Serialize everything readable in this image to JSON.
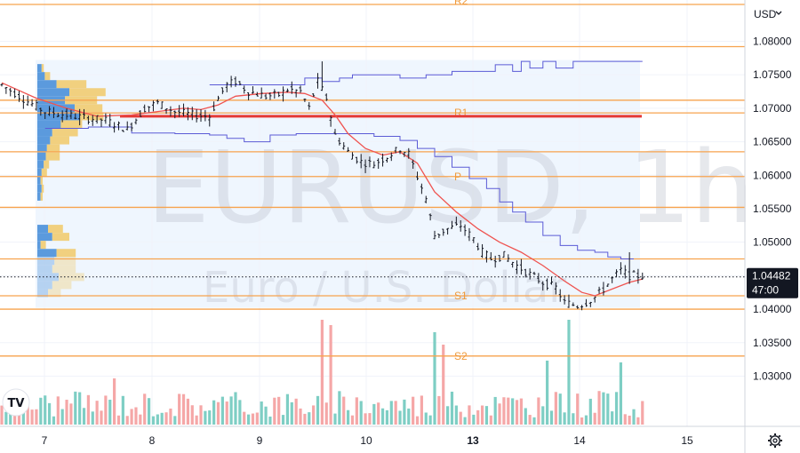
{
  "watermark": {
    "symbol": "EURUSD, 1h",
    "description": "Euro / U.S. Dollar"
  },
  "currency": "USD",
  "logo_text": "TV",
  "price_label": {
    "value": "1.04482",
    "countdown": "47:00"
  },
  "colors": {
    "up_candle": "#131722",
    "pivot_line": "#f7a34e",
    "red_level": "#e53935",
    "ma_line": "#ef5350",
    "vwap_line": "#5b5bd6",
    "volume_up": "#7ecec4",
    "volume_down": "#f5a7a7",
    "profile_blue": "#4a90d9",
    "profile_yellow": "#f1c968"
  },
  "chart_data": {
    "type": "candlestick",
    "symbol": "EURUSD",
    "timeframe": "1h",
    "ylim": [
      1.0225,
      1.0855
    ],
    "y_ticks": [
      "1.03000",
      "1.03500",
      "1.04000",
      "1.04500",
      "1.05000",
      "1.05500",
      "1.06000",
      "1.06500",
      "1.07000",
      "1.07500",
      "1.08000"
    ],
    "x_ticks": [
      "7",
      "8",
      "9",
      "10",
      "13",
      "14",
      "15"
    ],
    "current_price": 1.04482,
    "pivot_levels": [
      {
        "label": "R2",
        "value": 1.0855
      },
      {
        "label": "",
        "value": 1.0792
      },
      {
        "label": "",
        "value": 1.0712
      },
      {
        "label": "R1",
        "value": 1.0693
      },
      {
        "label": "",
        "value": 1.0635
      },
      {
        "label": "P",
        "value": 1.0598
      },
      {
        "label": "",
        "value": 1.0552
      },
      {
        "label": "",
        "value": 1.0475
      },
      {
        "label": "S1",
        "value": 1.042
      },
      {
        "label": "",
        "value": 1.04
      },
      {
        "label": "S2",
        "value": 1.033
      }
    ],
    "red_level": 1.0688,
    "price_path": [
      [
        0,
        1.0735
      ],
      [
        6,
        1.071
      ],
      [
        10,
        1.0695
      ],
      [
        15,
        1.069
      ],
      [
        20,
        1.0685
      ],
      [
        24,
        1.0682
      ],
      [
        29,
        1.0668
      ],
      [
        33,
        1.07
      ],
      [
        36,
        1.0708
      ],
      [
        40,
        1.0695
      ],
      [
        44,
        1.069
      ],
      [
        48,
        1.0688
      ],
      [
        50,
        1.0715
      ],
      [
        52,
        1.0735
      ],
      [
        54,
        1.074
      ],
      [
        57,
        1.0725
      ],
      [
        61,
        1.0718
      ],
      [
        64,
        1.072
      ],
      [
        66,
        1.0728
      ],
      [
        69,
        1.0725
      ],
      [
        71,
        1.07
      ],
      [
        73,
        1.074
      ],
      [
        75,
        1.0715
      ],
      [
        77,
        1.066
      ],
      [
        80,
        1.0635
      ],
      [
        83,
        1.062
      ],
      [
        86,
        1.0617
      ],
      [
        89,
        1.0628
      ],
      [
        92,
        1.064
      ],
      [
        94,
        1.0632
      ],
      [
        96,
        1.0598
      ],
      [
        98,
        1.0565
      ],
      [
        100,
        1.051
      ],
      [
        103,
        1.052
      ],
      [
        106,
        1.0525
      ],
      [
        109,
        1.0505
      ],
      [
        111,
        1.0485
      ],
      [
        113,
        1.0475
      ],
      [
        116,
        1.048
      ],
      [
        119,
        1.0465
      ],
      [
        122,
        1.0452
      ],
      [
        125,
        1.044
      ],
      [
        128,
        1.0432
      ],
      [
        130,
        1.041
      ],
      [
        133,
        1.0405
      ],
      [
        135,
        1.041
      ],
      [
        137,
        1.0418
      ],
      [
        139,
        1.043
      ],
      [
        141,
        1.0445
      ],
      [
        143,
        1.0458
      ],
      [
        145,
        1.045
      ],
      [
        148,
        1.045
      ]
    ],
    "ma_path": [
      [
        0,
        1.0738
      ],
      [
        8,
        1.0715
      ],
      [
        15,
        1.07
      ],
      [
        22,
        1.0688
      ],
      [
        30,
        1.069
      ],
      [
        36,
        1.0695
      ],
      [
        42,
        1.07
      ],
      [
        46,
        1.0698
      ],
      [
        50,
        1.0705
      ],
      [
        54,
        1.0718
      ],
      [
        60,
        1.0722
      ],
      [
        66,
        1.0724
      ],
      [
        70,
        1.0722
      ],
      [
        74,
        1.0712
      ],
      [
        77,
        1.069
      ],
      [
        80,
        1.0662
      ],
      [
        84,
        1.064
      ],
      [
        88,
        1.063
      ],
      [
        92,
        1.0635
      ],
      [
        96,
        1.0618
      ],
      [
        100,
        1.0575
      ],
      [
        105,
        1.0545
      ],
      [
        110,
        1.052
      ],
      [
        115,
        1.05
      ],
      [
        120,
        1.0485
      ],
      [
        125,
        1.0465
      ],
      [
        130,
        1.0442
      ],
      [
        134,
        1.0425
      ],
      [
        137,
        1.042
      ],
      [
        141,
        1.043
      ],
      [
        145,
        1.044
      ],
      [
        148,
        1.0445
      ]
    ],
    "vwap_upper": [
      [
        48,
        1.0735
      ],
      [
        66,
        1.0735
      ],
      [
        70,
        1.0745
      ],
      [
        74,
        1.074
      ],
      [
        78,
        1.0745
      ],
      [
        81,
        1.075
      ],
      [
        88,
        1.075
      ],
      [
        92,
        1.0745
      ],
      [
        98,
        1.075
      ],
      [
        104,
        1.0755
      ],
      [
        112,
        1.0755
      ],
      [
        114,
        1.0765
      ],
      [
        116,
        1.0765
      ],
      [
        118,
        1.0755
      ],
      [
        120,
        1.077
      ],
      [
        122,
        1.076
      ],
      [
        125,
        1.077
      ],
      [
        128,
        1.076
      ],
      [
        132,
        1.077
      ],
      [
        148,
        1.077
      ]
    ],
    "vwap_lower": [
      [
        10,
        1.067
      ],
      [
        20,
        1.0672
      ],
      [
        30,
        1.0663
      ],
      [
        40,
        1.0662
      ],
      [
        48,
        1.066
      ],
      [
        52,
        1.0655
      ],
      [
        56,
        1.065
      ],
      [
        62,
        1.066
      ],
      [
        68,
        1.0662
      ],
      [
        75,
        1.0662
      ],
      [
        80,
        1.0662
      ],
      [
        86,
        1.0658
      ],
      [
        92,
        1.0652
      ],
      [
        96,
        1.064
      ],
      [
        100,
        1.0628
      ],
      [
        104,
        1.0612
      ],
      [
        108,
        1.0595
      ],
      [
        112,
        1.058
      ],
      [
        115,
        1.056
      ],
      [
        118,
        1.0545
      ],
      [
        121,
        1.053
      ],
      [
        125,
        1.051
      ],
      [
        129,
        1.0495
      ],
      [
        133,
        1.0488
      ],
      [
        137,
        1.0485
      ],
      [
        140,
        1.0478
      ],
      [
        143,
        1.0475
      ],
      [
        146,
        1.0475
      ]
    ],
    "volume_profile": [
      {
        "price": 1.076,
        "buy": 0.04,
        "sell": 0.02
      },
      {
        "price": 1.0748,
        "buy": 0.07,
        "sell": 0.05
      },
      {
        "price": 1.0736,
        "buy": 0.18,
        "sell": 0.28
      },
      {
        "price": 1.0724,
        "buy": 0.3,
        "sell": 0.34
      },
      {
        "price": 1.0712,
        "buy": 0.26,
        "sell": 0.3
      },
      {
        "price": 1.07,
        "buy": 0.35,
        "sell": 0.26
      },
      {
        "price": 1.0688,
        "buy": 0.4,
        "sell": 0.22
      },
      {
        "price": 1.0676,
        "buy": 0.22,
        "sell": 0.2
      },
      {
        "price": 1.0664,
        "buy": 0.14,
        "sell": 0.24
      },
      {
        "price": 1.0652,
        "buy": 0.12,
        "sell": 0.18
      },
      {
        "price": 1.064,
        "buy": 0.09,
        "sell": 0.12
      },
      {
        "price": 1.0628,
        "buy": 0.08,
        "sell": 0.13
      },
      {
        "price": 1.0616,
        "buy": 0.06,
        "sell": 0.05
      },
      {
        "price": 1.0604,
        "buy": 0.04,
        "sell": 0.05
      },
      {
        "price": 1.0592,
        "buy": 0.03,
        "sell": 0.02
      },
      {
        "price": 1.058,
        "buy": 0.04,
        "sell": 0.02
      },
      {
        "price": 1.0568,
        "buy": 0.03,
        "sell": 0.02
      },
      {
        "price": 1.052,
        "buy": 0.1,
        "sell": 0.14
      },
      {
        "price": 1.0508,
        "buy": 0.14,
        "sell": 0.16
      },
      {
        "price": 1.0496,
        "buy": 0.03,
        "sell": 0.05
      },
      {
        "price": 1.0484,
        "buy": 0.18,
        "sell": 0.18
      },
      {
        "price": 1.0472,
        "buy": 0.16,
        "sell": 0.2
      },
      {
        "price": 1.046,
        "buy": 0.14,
        "sell": 0.22
      },
      {
        "price": 1.0448,
        "buy": 0.2,
        "sell": 0.24
      },
      {
        "price": 1.0436,
        "buy": 0.14,
        "sell": 0.18
      },
      {
        "price": 1.0424,
        "buy": 0.1,
        "sell": 0.12
      }
    ]
  }
}
